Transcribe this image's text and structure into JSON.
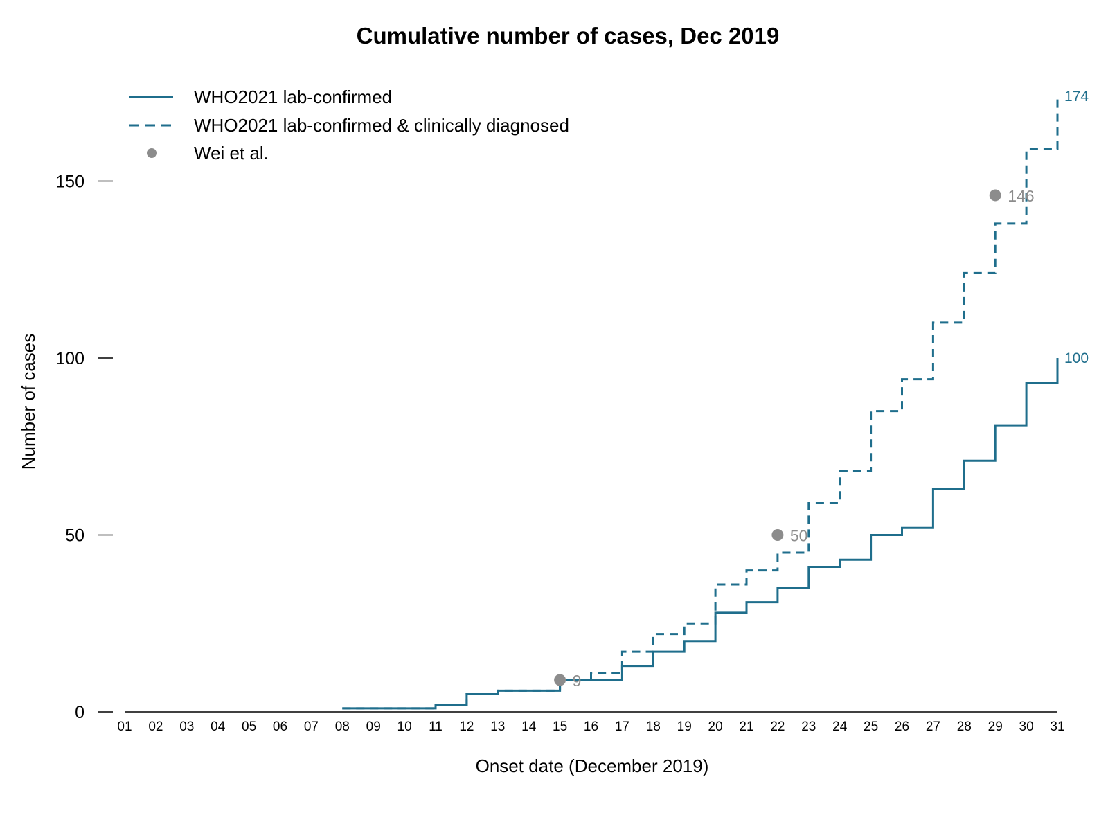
{
  "chart_data": {
    "type": "line",
    "title": "Cumulative number of cases, Dec 2019",
    "xlabel": "Onset date (December 2019)",
    "ylabel": "Number of cases",
    "ylim": [
      0,
      175
    ],
    "yticks": [
      0,
      50,
      100,
      150
    ],
    "grid": false,
    "legend_position": "top-left",
    "categories": [
      "01",
      "02",
      "03",
      "04",
      "05",
      "06",
      "07",
      "08",
      "09",
      "10",
      "11",
      "12",
      "13",
      "14",
      "15",
      "16",
      "17",
      "18",
      "19",
      "20",
      "21",
      "22",
      "23",
      "24",
      "25",
      "26",
      "27",
      "28",
      "29",
      "30",
      "31"
    ],
    "series": [
      {
        "name": "WHO2021 lab-confirmed",
        "style": "solid-step",
        "color": "#1f6e8c",
        "values": [
          0,
          0,
          0,
          0,
          0,
          0,
          0,
          1,
          1,
          1,
          2,
          5,
          6,
          6,
          9,
          9,
          13,
          17,
          20,
          28,
          31,
          35,
          41,
          43,
          50,
          52,
          63,
          71,
          81,
          93,
          100
        ],
        "end_label": "100"
      },
      {
        "name": "WHO2021 lab-confirmed & clinically diagnosed",
        "style": "dashed-step",
        "color": "#1f6e8c",
        "values": [
          0,
          0,
          0,
          0,
          0,
          0,
          0,
          1,
          1,
          1,
          2,
          5,
          6,
          6,
          9,
          11,
          17,
          22,
          25,
          36,
          40,
          45,
          59,
          68,
          85,
          94,
          110,
          124,
          138,
          159,
          174
        ],
        "end_label": "174"
      },
      {
        "name": "Wei et al.",
        "style": "points",
        "color": "#8c8c8c",
        "points": [
          {
            "x": "15",
            "y": 9,
            "label": "9"
          },
          {
            "x": "22",
            "y": 50,
            "label": "50"
          },
          {
            "x": "29",
            "y": 146,
            "label": "146"
          }
        ]
      }
    ]
  }
}
